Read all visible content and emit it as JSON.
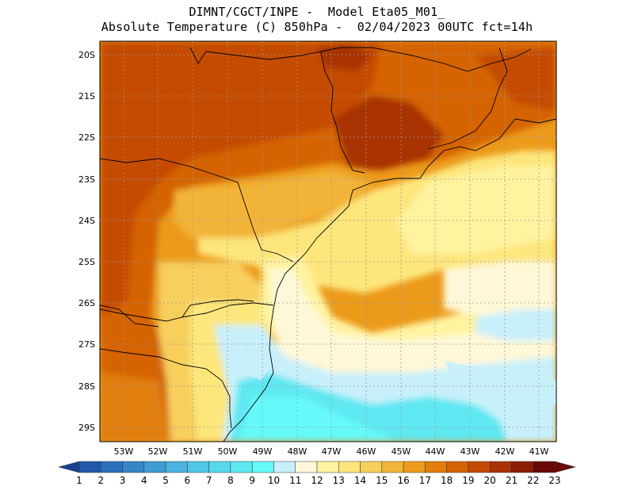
{
  "title_line1": "DIMNT/CGCT/INPE -  Model Eta05_M01_",
  "title_line2": "Absolute Temperature (C) 850hPa -  02/04/2023 00UTC fct=14h",
  "map": {
    "lat_labels": [
      "20S",
      "21S",
      "22S",
      "23S",
      "24S",
      "25S",
      "26S",
      "27S",
      "28S",
      "29S"
    ],
    "lon_labels": [
      "53W",
      "52W",
      "51W",
      "50W",
      "49W",
      "48W",
      "47W",
      "46W",
      "45W",
      "44W",
      "43W",
      "42W",
      "41W"
    ]
  },
  "colorbar": {
    "labels": [
      "1",
      "2",
      "3",
      "4",
      "5",
      "6",
      "7",
      "8",
      "9",
      "10",
      "11",
      "12",
      "13",
      "14",
      "15",
      "16",
      "17",
      "18",
      "19",
      "20",
      "21",
      "22",
      "23"
    ],
    "colors": [
      "#1a3f8f",
      "#2158a8",
      "#2a6fba",
      "#3586c6",
      "#3f9cd2",
      "#4ab3de",
      "#52c6e6",
      "#58d8ec",
      "#5fe8f2",
      "#66f9f9",
      "#c8f0fb",
      "#fff8d8",
      "#fff3a0",
      "#fde67c",
      "#f7cf5d",
      "#f2b438",
      "#ec9a1a",
      "#e27e0a",
      "#d46306",
      "#c54b05",
      "#a83204",
      "#8a1d04",
      "#6a0808"
    ]
  }
}
